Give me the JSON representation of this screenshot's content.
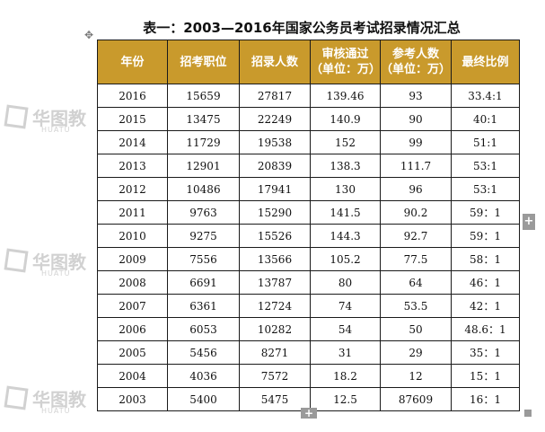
{
  "document": {
    "title": "表一：2003—2016年国家公务员考试招录情况汇总"
  },
  "table": {
    "headers": [
      "年份",
      "招考职位",
      "招录人数",
      "审核通过\n（单位：万）",
      "参考人数\n（单位：万）",
      "最终比例"
    ],
    "rows": [
      [
        "2016",
        "15659",
        "27817",
        "139.46",
        "93",
        "33.4:1"
      ],
      [
        "2015",
        "13475",
        "22249",
        "140.9",
        "90",
        "40:1"
      ],
      [
        "2014",
        "11729",
        "19538",
        "152",
        "99",
        "51:1"
      ],
      [
        "2013",
        "12901",
        "20839",
        "138.3",
        "111.7",
        "53:1"
      ],
      [
        "2012",
        "10486",
        "17941",
        "130",
        "96",
        "53:1"
      ],
      [
        "2011",
        "9763",
        "15290",
        "141.5",
        "90.2",
        "59：1"
      ],
      [
        "2010",
        "9275",
        "15526",
        "144.3",
        "92.7",
        "59：1"
      ],
      [
        "2009",
        "7556",
        "13566",
        "105.2",
        "77.5",
        "58：1"
      ],
      [
        "2008",
        "6691",
        "13787",
        "80",
        "64",
        "46：1"
      ],
      [
        "2007",
        "6361",
        "12724",
        "74",
        "53.5",
        "42：1"
      ],
      [
        "2006",
        "6053",
        "10282",
        "54",
        "50",
        "48.6：1"
      ],
      [
        "2005",
        "5456",
        "8271",
        "31",
        "29",
        "35：1"
      ],
      [
        "2004",
        "4036",
        "7572",
        "18.2",
        "12",
        "15：1"
      ],
      [
        "2003",
        "5400",
        "5475",
        "12.5",
        "87609",
        "16：1"
      ]
    ]
  },
  "watermark": {
    "text": "华图教",
    "sub": "HUATU"
  },
  "editor_handles": {
    "move_glyph": "✥",
    "side_glyph": "+",
    "bottom_glyph": "+"
  },
  "colors": {
    "header_bg": "#c99a2c",
    "header_text": "#ffffff",
    "border": "#1a1a1a"
  }
}
